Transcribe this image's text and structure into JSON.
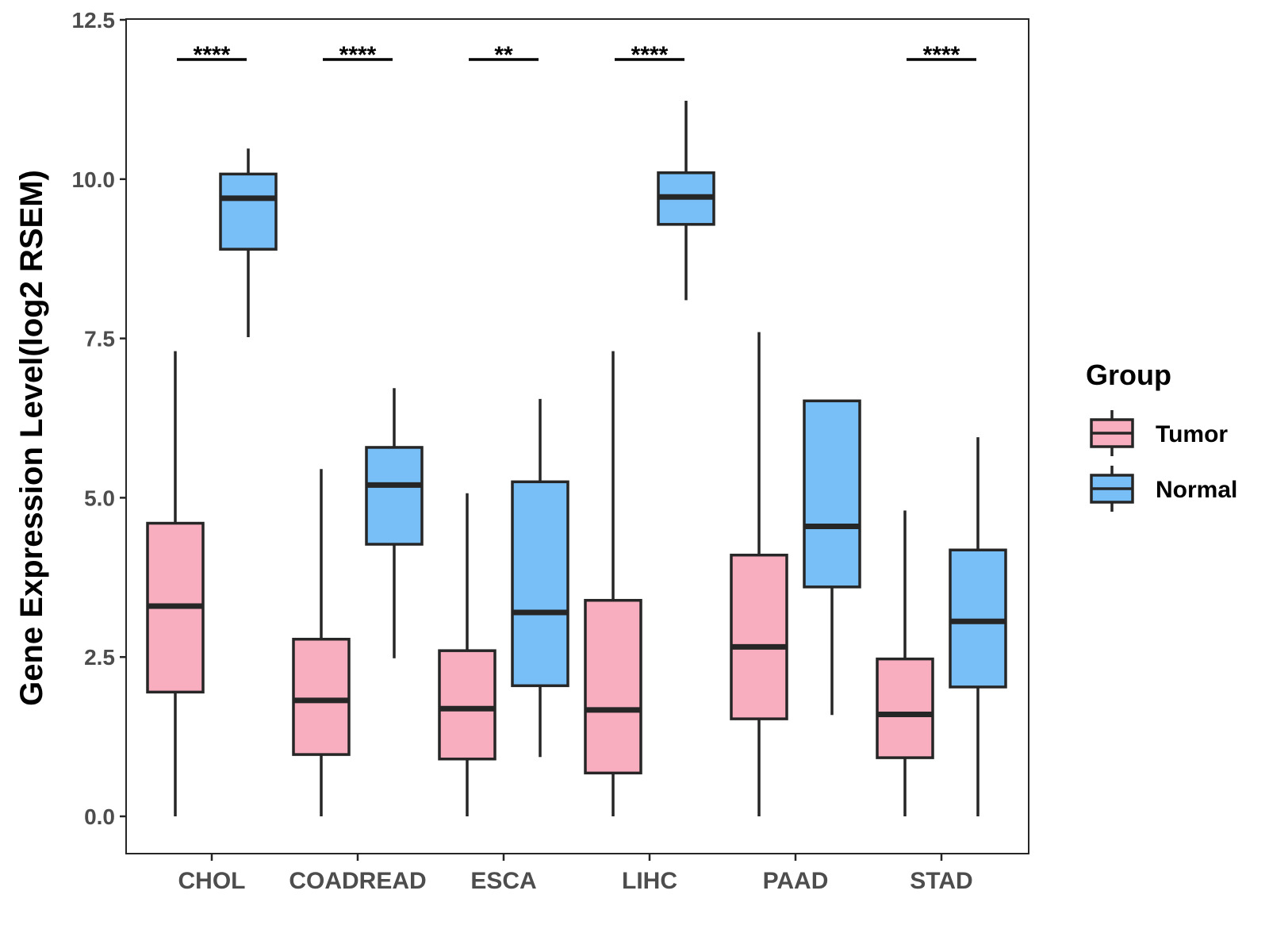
{
  "chart_data": {
    "type": "boxplot",
    "ylabel": "Gene Expression Level(log2 RSEM)",
    "xlabel": "",
    "ylim": [
      -0.3,
      12.5
    ],
    "yticks": [
      0.0,
      2.5,
      5.0,
      7.5,
      10.0,
      12.5
    ],
    "ytick_labels": [
      "0.0",
      "2.5",
      "5.0",
      "7.5",
      "10.0",
      "12.5"
    ],
    "categories": [
      "CHOL",
      "COADREAD",
      "ESCA",
      "LIHC",
      "PAAD",
      "STAD"
    ],
    "significance": [
      "****",
      "****",
      "**",
      "****",
      "",
      "****"
    ],
    "legend": {
      "title": "Group",
      "position": "right",
      "entries": [
        "Tumor",
        "Normal"
      ]
    },
    "colors": {
      "Tumor": "#f9aec0",
      "Normal": "#78bff7",
      "outline": "#262626"
    },
    "series": [
      {
        "name": "Tumor",
        "boxes": [
          {
            "min": 0.0,
            "q1": 1.95,
            "median": 3.3,
            "q3": 4.6,
            "max": 7.3
          },
          {
            "min": 0.0,
            "q1": 0.97,
            "median": 1.82,
            "q3": 2.78,
            "max": 5.45
          },
          {
            "min": 0.0,
            "q1": 0.9,
            "median": 1.69,
            "q3": 2.6,
            "max": 5.07
          },
          {
            "min": 0.0,
            "q1": 0.68,
            "median": 1.67,
            "q3": 3.39,
            "max": 7.3
          },
          {
            "min": 0.0,
            "q1": 1.53,
            "median": 2.66,
            "q3": 4.1,
            "max": 7.6
          },
          {
            "min": 0.0,
            "q1": 0.92,
            "median": 1.6,
            "q3": 2.47,
            "max": 4.8
          }
        ]
      },
      {
        "name": "Normal",
        "boxes": [
          {
            "min": 7.52,
            "q1": 8.9,
            "median": 9.7,
            "q3": 10.08,
            "max": 10.48
          },
          {
            "min": 2.48,
            "q1": 4.27,
            "median": 5.2,
            "q3": 5.79,
            "max": 6.72
          },
          {
            "min": 0.93,
            "q1": 2.05,
            "median": 3.2,
            "q3": 5.25,
            "max": 6.55
          },
          {
            "min": 8.1,
            "q1": 9.29,
            "median": 9.72,
            "q3": 10.1,
            "max": 11.23
          },
          {
            "min": 1.59,
            "q1": 3.6,
            "median": 4.55,
            "q3": 6.52,
            "max": 6.52
          },
          {
            "min": 0.0,
            "q1": 2.03,
            "median": 3.06,
            "q3": 4.18,
            "max": 5.95
          }
        ]
      }
    ]
  }
}
